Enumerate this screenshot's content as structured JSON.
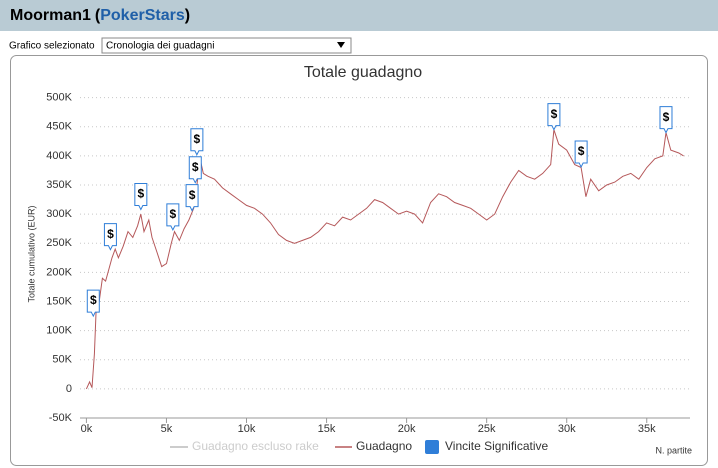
{
  "header": {
    "player": "Moorman1",
    "open": "(",
    "site": "PokerStars",
    "close": ")"
  },
  "selector": {
    "label": "Grafico selezionato",
    "value": "Cronologia dei guadagni"
  },
  "chart_data": {
    "type": "line",
    "title": "Totale guadagno",
    "y_label": "Totale cumulativo (EUR)",
    "x_label": "N. partite",
    "xlim": [
      -400,
      37700
    ],
    "ylim": [
      -50000,
      520000
    ],
    "grid": true,
    "xticks": [
      {
        "value": 0,
        "label": "0k"
      },
      {
        "value": 5000,
        "label": "5k"
      },
      {
        "value": 10000,
        "label": "10k"
      },
      {
        "value": 15000,
        "label": "15k"
      },
      {
        "value": 20000,
        "label": "20k"
      },
      {
        "value": 25000,
        "label": "25k"
      },
      {
        "value": 30000,
        "label": "30k"
      },
      {
        "value": 35000,
        "label": "35k"
      }
    ],
    "yticks": [
      {
        "value": -50000,
        "label": "-50K"
      },
      0,
      {
        "value": 50000,
        "label": "50K"
      },
      {
        "value": 100000,
        "label": "100K"
      },
      {
        "value": 150000,
        "label": "150K"
      },
      {
        "value": 200000,
        "label": "200K"
      },
      {
        "value": 250000,
        "label": "250K"
      },
      {
        "value": 300000,
        "label": "300K"
      },
      {
        "value": 350000,
        "label": "350K"
      },
      {
        "value": 400000,
        "label": "400K"
      },
      {
        "value": 450000,
        "label": "450K"
      },
      {
        "value": 500000,
        "label": "500K"
      }
    ],
    "series": [
      {
        "name": "Guadagno escluso rake",
        "color": "#cccccc",
        "visible": false
      },
      {
        "name": "Guadagno",
        "color": "#b5585a",
        "x": [
          0,
          200,
          350,
          500,
          600,
          800,
          1000,
          1200,
          1400,
          1600,
          1800,
          2000,
          2300,
          2600,
          2900,
          3200,
          3400,
          3600,
          3900,
          4100,
          4400,
          4700,
          5000,
          5300,
          5500,
          5800,
          6100,
          6400,
          6700,
          6900,
          7100,
          7300,
          7600,
          8000,
          8500,
          9000,
          9500,
          10000,
          10500,
          11000,
          11500,
          12000,
          12500,
          13000,
          13500,
          14000,
          14500,
          15000,
          15500,
          16000,
          16500,
          17000,
          17500,
          18000,
          18500,
          19000,
          19500,
          20000,
          20500,
          21000,
          21500,
          22000,
          22500,
          23000,
          23500,
          24000,
          24500,
          25000,
          25500,
          26000,
          26500,
          27000,
          27500,
          28000,
          28500,
          29000,
          29200,
          29500,
          30000,
          30500,
          30900,
          31200,
          31500,
          32000,
          32500,
          33000,
          33500,
          34000,
          34500,
          35000,
          35500,
          36000,
          36200,
          36500,
          37000,
          37300
        ],
        "values": [
          0,
          12000,
          2000,
          60000,
          130000,
          150000,
          190000,
          185000,
          205000,
          225000,
          240000,
          225000,
          245000,
          270000,
          260000,
          280000,
          300000,
          270000,
          290000,
          260000,
          235000,
          210000,
          215000,
          250000,
          270000,
          255000,
          275000,
          290000,
          310000,
          350000,
          395000,
          370000,
          365000,
          360000,
          345000,
          335000,
          325000,
          315000,
          310000,
          300000,
          285000,
          265000,
          255000,
          250000,
          255000,
          260000,
          270000,
          285000,
          280000,
          295000,
          290000,
          300000,
          310000,
          325000,
          320000,
          310000,
          300000,
          305000,
          300000,
          285000,
          320000,
          335000,
          330000,
          320000,
          315000,
          310000,
          300000,
          290000,
          300000,
          330000,
          355000,
          375000,
          365000,
          360000,
          370000,
          385000,
          445000,
          420000,
          410000,
          385000,
          380000,
          330000,
          360000,
          340000,
          350000,
          355000,
          365000,
          370000,
          360000,
          380000,
          395000,
          400000,
          440000,
          410000,
          405000,
          400000
        ]
      },
      {
        "name": "Vincite Significative",
        "color": "#2f7ed8",
        "flag_label": "$",
        "x": [
          430,
          1500,
          3400,
          5400,
          6600,
          6800,
          6900,
          29200,
          30900,
          36200
        ],
        "values": [
          125000,
          239000,
          308000,
          273000,
          306000,
          354000,
          402000,
          445000,
          381000,
          440000
        ]
      }
    ]
  }
}
